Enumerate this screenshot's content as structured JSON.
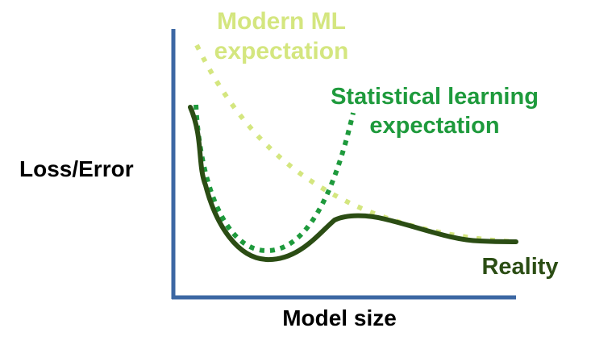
{
  "figure": {
    "y_axis_label": "Loss/Error",
    "x_axis_label": "Model size"
  },
  "curves": {
    "modern_ml": {
      "label_line1": "Modern ML",
      "label_line2": "expectation",
      "color": "#d4e67f",
      "style": "dotted"
    },
    "statistical": {
      "label_line1": "Statistical learning",
      "label_line2": "expectation",
      "color": "#1e9a3c",
      "style": "dotted"
    },
    "reality": {
      "label": "Reality",
      "color": "#2b4d14",
      "style": "solid"
    }
  },
  "colors": {
    "axis": "#3c67a3",
    "text": "#000000"
  }
}
